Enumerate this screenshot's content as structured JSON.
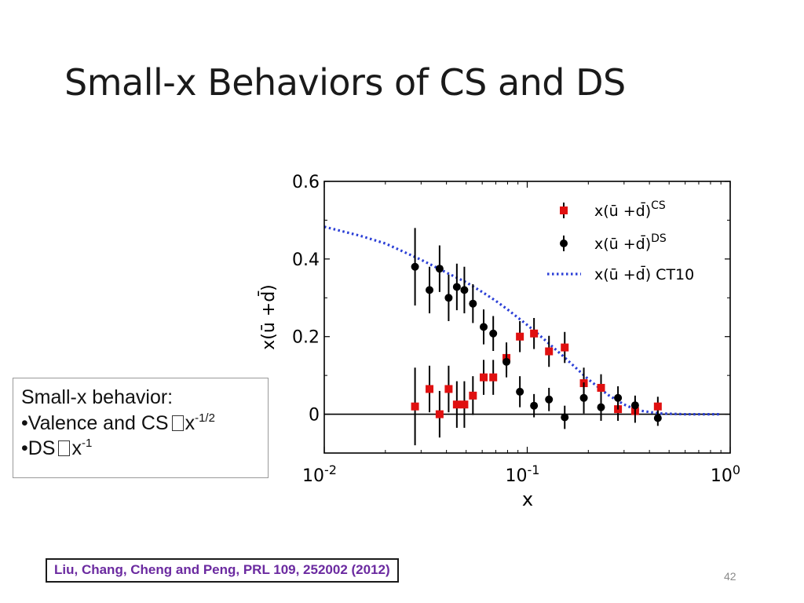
{
  "slide": {
    "title": "Small-x Behaviors of CS and DS",
    "page_number": "42",
    "citation": "Liu, Chang, Cheng and Peng, PRL 109, 252002 (2012)"
  },
  "note": {
    "heading": "Small-x behavior:",
    "line1_prefix": "•Valence and CS",
    "line1_base": "x",
    "line1_exp": "-1/2",
    "line2_prefix": "•DS",
    "line2_base": "x",
    "line2_exp": "-1"
  },
  "chart_data": {
    "type": "scatter",
    "xscale": "log",
    "xlim": [
      0.01,
      1
    ],
    "ylim": [
      -0.1,
      0.6
    ],
    "xlabel": "x",
    "ylabel": "x(ū +d̄)",
    "yticks": [
      "0",
      "0.2",
      "0.4",
      "0.6"
    ],
    "xticks": [
      {
        "base": "10",
        "exp": "-2"
      },
      {
        "base": "10",
        "exp": "-1"
      },
      {
        "base": "10",
        "exp": "0"
      }
    ],
    "legend_position": "top-right",
    "series": [
      {
        "name": "x(ū +d̄)",
        "name_sup": "CS",
        "marker": "square",
        "color": "#e01010",
        "points": [
          {
            "x": 0.028,
            "y": 0.02,
            "err": 0.1
          },
          {
            "x": 0.033,
            "y": 0.065,
            "err": 0.06
          },
          {
            "x": 0.037,
            "y": 0.0,
            "err": 0.06
          },
          {
            "x": 0.041,
            "y": 0.065,
            "err": 0.06
          },
          {
            "x": 0.045,
            "y": 0.025,
            "err": 0.06
          },
          {
            "x": 0.049,
            "y": 0.025,
            "err": 0.06
          },
          {
            "x": 0.054,
            "y": 0.048,
            "err": 0.05
          },
          {
            "x": 0.061,
            "y": 0.095,
            "err": 0.045
          },
          {
            "x": 0.068,
            "y": 0.095,
            "err": 0.045
          },
          {
            "x": 0.079,
            "y": 0.145,
            "err": 0.04
          },
          {
            "x": 0.092,
            "y": 0.2,
            "err": 0.04
          },
          {
            "x": 0.108,
            "y": 0.208,
            "err": 0.04
          },
          {
            "x": 0.128,
            "y": 0.162,
            "err": 0.04
          },
          {
            "x": 0.153,
            "y": 0.172,
            "err": 0.04
          },
          {
            "x": 0.19,
            "y": 0.08,
            "err": 0.04
          },
          {
            "x": 0.231,
            "y": 0.068,
            "err": 0.035
          },
          {
            "x": 0.28,
            "y": 0.013,
            "err": 0.03
          },
          {
            "x": 0.34,
            "y": 0.008,
            "err": 0.03
          },
          {
            "x": 0.44,
            "y": 0.02,
            "err": 0.025
          }
        ]
      },
      {
        "name": "x(ū +d̄)",
        "name_sup": "DS",
        "marker": "circle",
        "color": "#000000",
        "points": [
          {
            "x": 0.028,
            "y": 0.38,
            "err": 0.1
          },
          {
            "x": 0.033,
            "y": 0.32,
            "err": 0.06
          },
          {
            "x": 0.037,
            "y": 0.375,
            "err": 0.06
          },
          {
            "x": 0.041,
            "y": 0.3,
            "err": 0.06
          },
          {
            "x": 0.045,
            "y": 0.328,
            "err": 0.06
          },
          {
            "x": 0.049,
            "y": 0.32,
            "err": 0.06
          },
          {
            "x": 0.054,
            "y": 0.285,
            "err": 0.05
          },
          {
            "x": 0.061,
            "y": 0.225,
            "err": 0.045
          },
          {
            "x": 0.068,
            "y": 0.208,
            "err": 0.045
          },
          {
            "x": 0.079,
            "y": 0.135,
            "err": 0.04
          },
          {
            "x": 0.092,
            "y": 0.058,
            "err": 0.04
          },
          {
            "x": 0.108,
            "y": 0.022,
            "err": 0.03
          },
          {
            "x": 0.128,
            "y": 0.038,
            "err": 0.03
          },
          {
            "x": 0.153,
            "y": -0.008,
            "err": 0.03
          },
          {
            "x": 0.19,
            "y": 0.042,
            "err": 0.04
          },
          {
            "x": 0.231,
            "y": 0.018,
            "err": 0.035
          },
          {
            "x": 0.28,
            "y": 0.042,
            "err": 0.03
          },
          {
            "x": 0.34,
            "y": 0.023,
            "err": 0.025
          },
          {
            "x": 0.44,
            "y": -0.01,
            "err": 0.02
          }
        ]
      },
      {
        "name": "x(ū +d̄) CT10",
        "name_sup": "",
        "marker": "dotted-line",
        "color": "#2b3fd6",
        "points": [
          {
            "x": 0.01,
            "y": 0.483
          },
          {
            "x": 0.015,
            "y": 0.46
          },
          {
            "x": 0.02,
            "y": 0.44
          },
          {
            "x": 0.03,
            "y": 0.398
          },
          {
            "x": 0.04,
            "y": 0.365
          },
          {
            "x": 0.05,
            "y": 0.34
          },
          {
            "x": 0.06,
            "y": 0.315
          },
          {
            "x": 0.07,
            "y": 0.292
          },
          {
            "x": 0.08,
            "y": 0.27
          },
          {
            "x": 0.1,
            "y": 0.23
          },
          {
            "x": 0.12,
            "y": 0.195
          },
          {
            "x": 0.15,
            "y": 0.15
          },
          {
            "x": 0.2,
            "y": 0.09
          },
          {
            "x": 0.25,
            "y": 0.05
          },
          {
            "x": 0.3,
            "y": 0.025
          },
          {
            "x": 0.35,
            "y": 0.01
          },
          {
            "x": 0.45,
            "y": 0.002
          },
          {
            "x": 0.6,
            "y": 0.0
          },
          {
            "x": 0.9,
            "y": 0.0
          }
        ]
      }
    ]
  }
}
